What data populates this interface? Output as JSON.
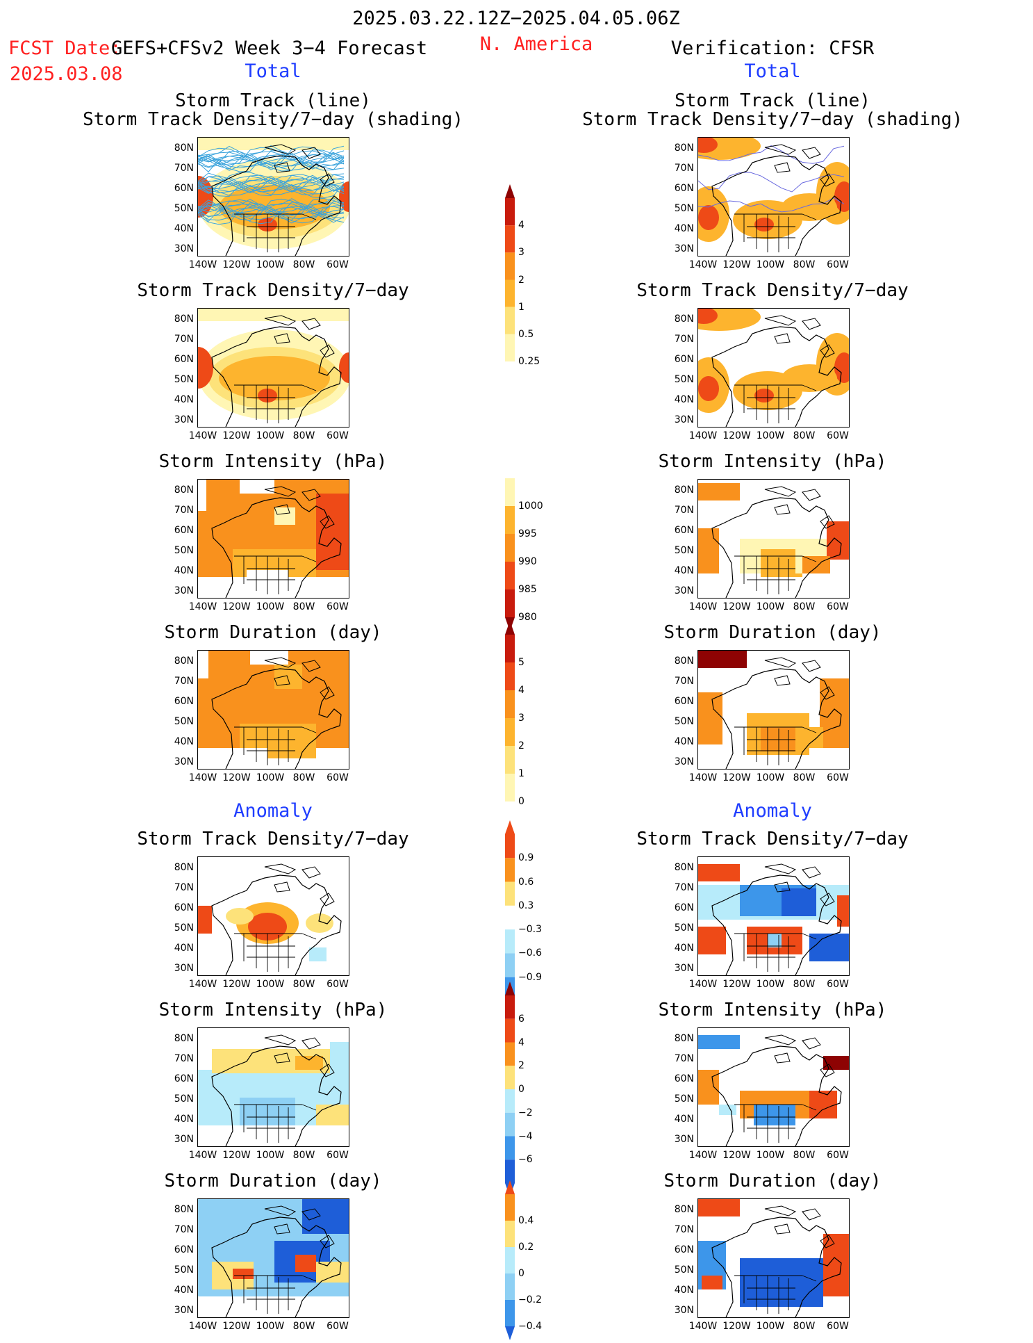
{
  "header": {
    "date_range": "2025.03.22.12Z−2025.04.05.06Z",
    "fcst_label": "FCST Date:",
    "fcst_model": "GEFS+CFSv2 Week 3−4 Forecast",
    "fcst_date": "2025.03.08",
    "region": "N. America",
    "verification": "Verification: CFSR"
  },
  "sections": {
    "total": "Total",
    "anomaly": "Anomaly"
  },
  "colors": {
    "ylw1": "#fff6b4",
    "ylw2": "#fde27a",
    "org1": "#fdb42e",
    "org2": "#f9911d",
    "red1": "#ee4a17",
    "red2": "#c81b0d",
    "dred": "#8e0303",
    "cyan1": "#b7ebfa",
    "cyan2": "#8ed0f4",
    "blu1": "#3d96ea",
    "blu2": "#1e5ed8",
    "track": "#3aa3dc"
  },
  "panels": {
    "left": {
      "track_title1": "Storm Track (line)",
      "track_title2": "Storm Track Density/7−day (shading)",
      "density_title": "Storm Track Density/7−day",
      "intensity_title": "Storm Intensity (hPa)",
      "duration_title": "Storm Duration (day)",
      "anom_density_title": "Storm Track Density/7−day",
      "anom_intensity_title": "Storm Intensity (hPa)",
      "anom_duration_title": "Storm Duration (day)"
    },
    "right": {
      "track_title1": "Storm Track (line)",
      "track_title2": "Storm Track Density/7−day (shading)",
      "density_title": "Storm Track Density/7−day",
      "intensity_title": "Storm Intensity (hPa)",
      "duration_title": "Storm Duration (day)",
      "anom_density_title": "Storm Track Density/7−day",
      "anom_intensity_title": "Storm Intensity (hPa)",
      "anom_duration_title": "Storm Duration (day)"
    }
  },
  "axes": {
    "lat_labels": [
      "80N",
      "70N",
      "60N",
      "50N",
      "40N",
      "30N"
    ],
    "lon_labels": [
      "140W",
      "120W",
      "100W",
      "80W",
      "60W"
    ]
  },
  "colorbars": {
    "track_density": [
      "4",
      "3",
      "2",
      "1",
      "0.5",
      "0.25"
    ],
    "intensity": [
      "1000",
      "995",
      "990",
      "985",
      "980"
    ],
    "duration": [
      "5",
      "4",
      "3",
      "2",
      "1",
      "0"
    ],
    "anom_density": [
      "0.9",
      "0.6",
      "0.3",
      "−0.3",
      "−0.6",
      "−0.9"
    ],
    "anom_intensity": [
      "6",
      "4",
      "2",
      "0",
      "−2",
      "−4",
      "−6"
    ],
    "anom_duration": [
      "0.4",
      "0.2",
      "0",
      "−0.2",
      "−0.4"
    ]
  },
  "chart_data": {
    "type": "heatmap",
    "title": "2025.03.22.12Z−2025.04.05.06Z",
    "subtitle": "N. America",
    "xlabel": "",
    "ylabel": "",
    "x_ticks": [
      "140W",
      "120W",
      "100W",
      "80W",
      "60W"
    ],
    "y_ticks": [
      "80N",
      "70N",
      "60N",
      "50N",
      "40N",
      "30N"
    ],
    "panels": [
      {
        "column": "GEFS+CFSv2 Week 3−4 Forecast",
        "section": "Total",
        "field": "Storm Track Density/7−day (shading)",
        "scale": [
          "0.25",
          "0.5",
          "1",
          "2",
          "3",
          "4"
        ]
      },
      {
        "column": "GEFS+CFSv2 Week 3−4 Forecast",
        "section": "Total",
        "field": "Storm Track Density/7−day",
        "scale": [
          "0.25",
          "0.5",
          "1",
          "2",
          "3",
          "4"
        ]
      },
      {
        "column": "GEFS+CFSv2 Week 3−4 Forecast",
        "section": "Total",
        "field": "Storm Intensity (hPa)",
        "scale": [
          "980",
          "985",
          "990",
          "995",
          "1000"
        ]
      },
      {
        "column": "GEFS+CFSv2 Week 3−4 Forecast",
        "section": "Total",
        "field": "Storm Duration (day)",
        "scale": [
          "0",
          "1",
          "2",
          "3",
          "4",
          "5"
        ]
      },
      {
        "column": "GEFS+CFSv2 Week 3−4 Forecast",
        "section": "Anomaly",
        "field": "Storm Track Density/7−day",
        "scale": [
          "−0.9",
          "−0.6",
          "−0.3",
          "0.3",
          "0.6",
          "0.9"
        ]
      },
      {
        "column": "GEFS+CFSv2 Week 3−4 Forecast",
        "section": "Anomaly",
        "field": "Storm Intensity (hPa)",
        "scale": [
          "−6",
          "−4",
          "−2",
          "0",
          "2",
          "4",
          "6"
        ]
      },
      {
        "column": "GEFS+CFSv2 Week 3−4 Forecast",
        "section": "Anomaly",
        "field": "Storm Duration (day)",
        "scale": [
          "−0.4",
          "−0.2",
          "0",
          "0.2",
          "0.4"
        ]
      },
      {
        "column": "Verification: CFSR",
        "section": "Total",
        "field": "Storm Track Density/7−day (shading)",
        "scale": [
          "0.25",
          "0.5",
          "1",
          "2",
          "3",
          "4"
        ]
      },
      {
        "column": "Verification: CFSR",
        "section": "Total",
        "field": "Storm Track Density/7−day",
        "scale": [
          "0.25",
          "0.5",
          "1",
          "2",
          "3",
          "4"
        ]
      },
      {
        "column": "Verification: CFSR",
        "section": "Total",
        "field": "Storm Intensity (hPa)",
        "scale": [
          "980",
          "985",
          "990",
          "995",
          "1000"
        ]
      },
      {
        "column": "Verification: CFSR",
        "section": "Total",
        "field": "Storm Duration (day)",
        "scale": [
          "0",
          "1",
          "2",
          "3",
          "4",
          "5"
        ]
      },
      {
        "column": "Verification: CFSR",
        "section": "Anomaly",
        "field": "Storm Track Density/7−day",
        "scale": [
          "−0.9",
          "−0.6",
          "−0.3",
          "0.3",
          "0.6",
          "0.9"
        ]
      },
      {
        "column": "Verification: CFSR",
        "section": "Anomaly",
        "field": "Storm Intensity (hPa)",
        "scale": [
          "−6",
          "−4",
          "−2",
          "0",
          "2",
          "4",
          "6"
        ]
      },
      {
        "column": "Verification: CFSR",
        "section": "Anomaly",
        "field": "Storm Duration (day)",
        "scale": [
          "−0.4",
          "−0.2",
          "0",
          "0.2",
          "0.4"
        ]
      }
    ]
  }
}
